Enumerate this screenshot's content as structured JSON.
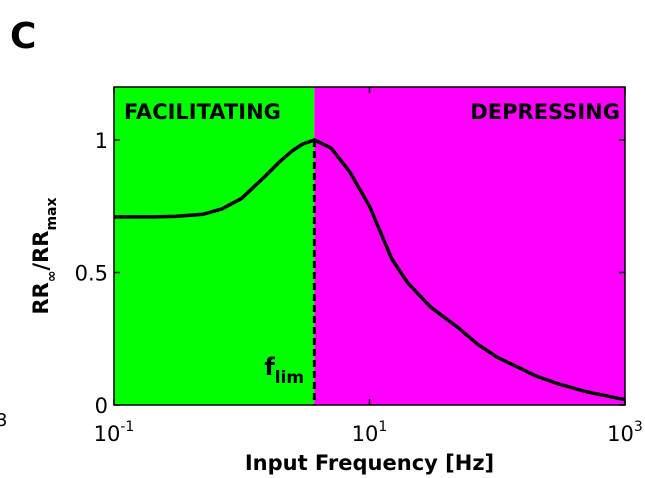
{
  "chart_data": {
    "type": "line",
    "panel_label": "C",
    "xlabel": "Input Frequency [Hz]",
    "ylabel": [
      "RR",
      "∞",
      "/RR",
      "max"
    ],
    "x": [
      0.1,
      0.2,
      0.3,
      0.5,
      0.7,
      1,
      1.5,
      2,
      2.5,
      3,
      3.7,
      5,
      7,
      10,
      15,
      20,
      30,
      50,
      70,
      100,
      200,
      300,
      500,
      1000
    ],
    "series": [
      {
        "color": "#000000",
        "values": [
          0.71,
          0.71,
          0.712,
          0.72,
          0.74,
          0.78,
          0.86,
          0.92,
          0.96,
          0.985,
          1.0,
          0.97,
          0.88,
          0.75,
          0.55,
          0.46,
          0.37,
          0.29,
          0.23,
          0.18,
          0.11,
          0.08,
          0.05,
          0.02
        ]
      }
    ],
    "xscale": "log",
    "xlim": [
      0.1,
      1000
    ],
    "ylim": [
      0,
      1.2
    ],
    "xticks": [
      {
        "value": 0.1,
        "label": "10",
        "exponent": "-1"
      },
      {
        "value": 10,
        "label": "10",
        "exponent": "1"
      },
      {
        "value": 1000,
        "label": "10",
        "exponent": "3"
      }
    ],
    "yticks": [
      0,
      0.5,
      1
    ],
    "f_lim": {
      "value": 3.7,
      "label": "f",
      "subscript": "lim"
    },
    "regions": [
      {
        "label": "FACILITATING",
        "color": "#00ff00"
      },
      {
        "label": "DEPRESSING",
        "color": "#ff00ff"
      }
    ],
    "edge_fragment": "3"
  }
}
